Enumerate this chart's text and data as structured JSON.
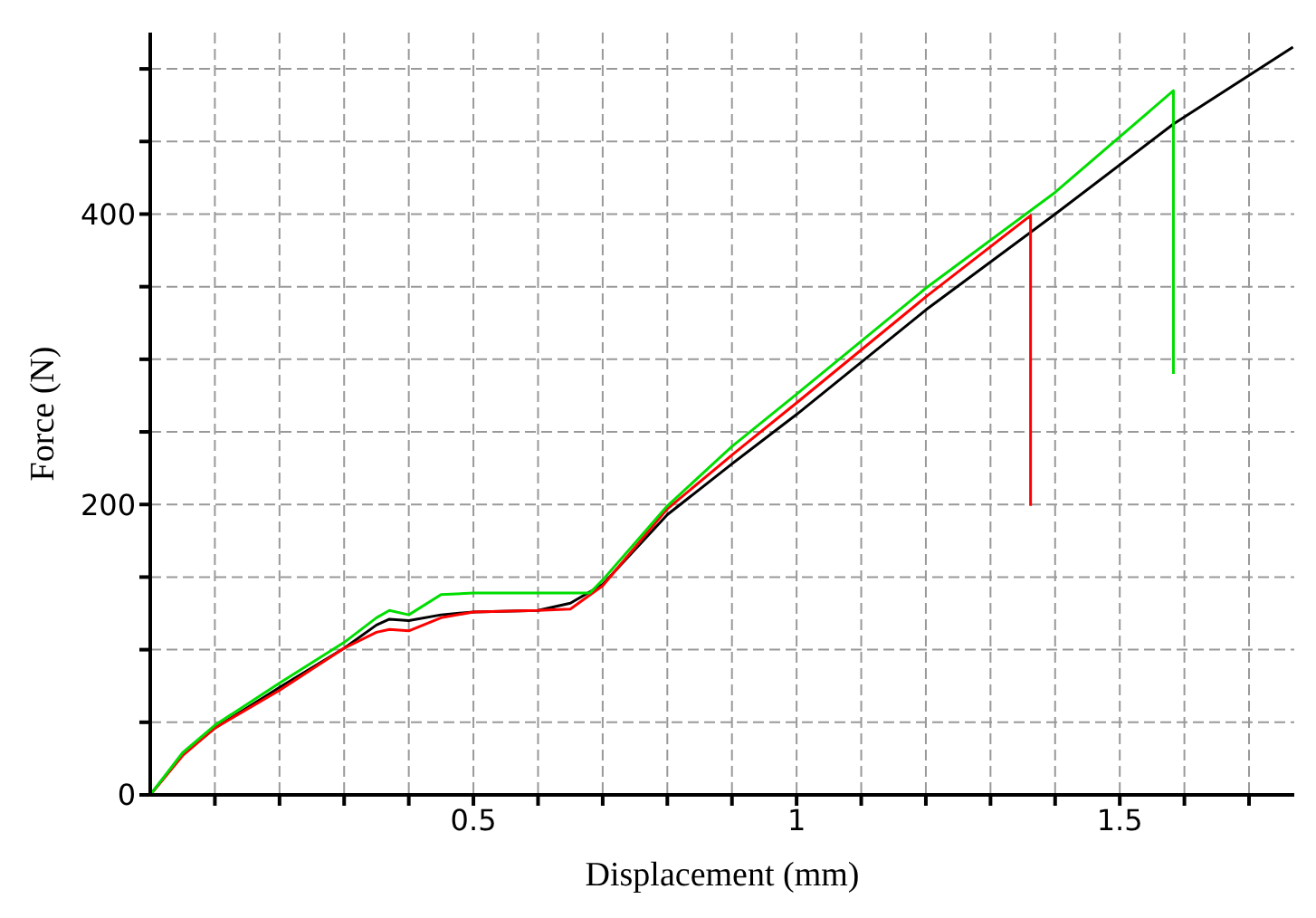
{
  "chart_data": {
    "type": "line",
    "xlabel": "Displacement (mm)",
    "ylabel": "Force (N)",
    "xlim": [
      0,
      1.77
    ],
    "ylim": [
      0,
      525
    ],
    "xticks": [
      {
        "value": 0.1,
        "label": null
      },
      {
        "value": 0.2,
        "label": null
      },
      {
        "value": 0.3,
        "label": null
      },
      {
        "value": 0.4,
        "label": null
      },
      0.5,
      {
        "value": 0.6,
        "label": null
      },
      {
        "value": 0.7,
        "label": null
      },
      {
        "value": 0.8,
        "label": null
      },
      {
        "value": 0.9,
        "label": null
      },
      1,
      {
        "value": 1.1,
        "label": null
      },
      {
        "value": 1.2,
        "label": null
      },
      {
        "value": 1.3,
        "label": null
      },
      {
        "value": 1.4,
        "label": null
      },
      1.5,
      {
        "value": 1.6,
        "label": null
      },
      {
        "value": 1.7,
        "label": null
      }
    ],
    "yticks": [
      0,
      {
        "value": 50,
        "label": null
      },
      {
        "value": 100,
        "label": null
      },
      {
        "value": 150,
        "label": null
      },
      200,
      {
        "value": 250,
        "label": null
      },
      {
        "value": 300,
        "label": null
      },
      {
        "value": 350,
        "label": null
      },
      400,
      {
        "value": 450,
        "label": null
      },
      {
        "value": 500,
        "label": null
      }
    ],
    "grid": true,
    "marker": "none",
    "line_style": "solid",
    "series": [
      {
        "color": "#000000",
        "x": [
          0,
          0.05,
          0.1,
          0.2,
          0.3,
          0.35,
          0.37,
          0.4,
          0.45,
          0.5,
          0.6,
          0.65,
          0.7,
          0.8,
          0.9,
          1.0,
          1.2,
          1.4,
          1.583,
          1.768
        ],
        "values": [
          0,
          28,
          46,
          74,
          101,
          117,
          121,
          120,
          124,
          126,
          127,
          132,
          145,
          193,
          228,
          262,
          334,
          400,
          462,
          515
        ]
      },
      {
        "color": "#ff0000",
        "x": [
          0,
          0.05,
          0.1,
          0.2,
          0.3,
          0.35,
          0.37,
          0.4,
          0.45,
          0.5,
          0.6,
          0.65,
          0.7,
          0.8,
          0.9,
          1.0,
          1.2,
          1.362,
          1.362
        ],
        "values": [
          0,
          27,
          46,
          72,
          101,
          112,
          114,
          113,
          122,
          126,
          127,
          128,
          144,
          197,
          234,
          270,
          343,
          399,
          199
        ]
      },
      {
        "color": "#00dd00",
        "x": [
          0,
          0.05,
          0.1,
          0.2,
          0.3,
          0.35,
          0.37,
          0.4,
          0.45,
          0.5,
          0.6,
          0.68,
          0.7,
          0.8,
          0.9,
          1.0,
          1.2,
          1.4,
          1.583,
          1.583
        ],
        "values": [
          0,
          29,
          48,
          77,
          105,
          122,
          127,
          124,
          138,
          139,
          139,
          139,
          148,
          199,
          240,
          276,
          349,
          415,
          485,
          290
        ]
      }
    ]
  }
}
